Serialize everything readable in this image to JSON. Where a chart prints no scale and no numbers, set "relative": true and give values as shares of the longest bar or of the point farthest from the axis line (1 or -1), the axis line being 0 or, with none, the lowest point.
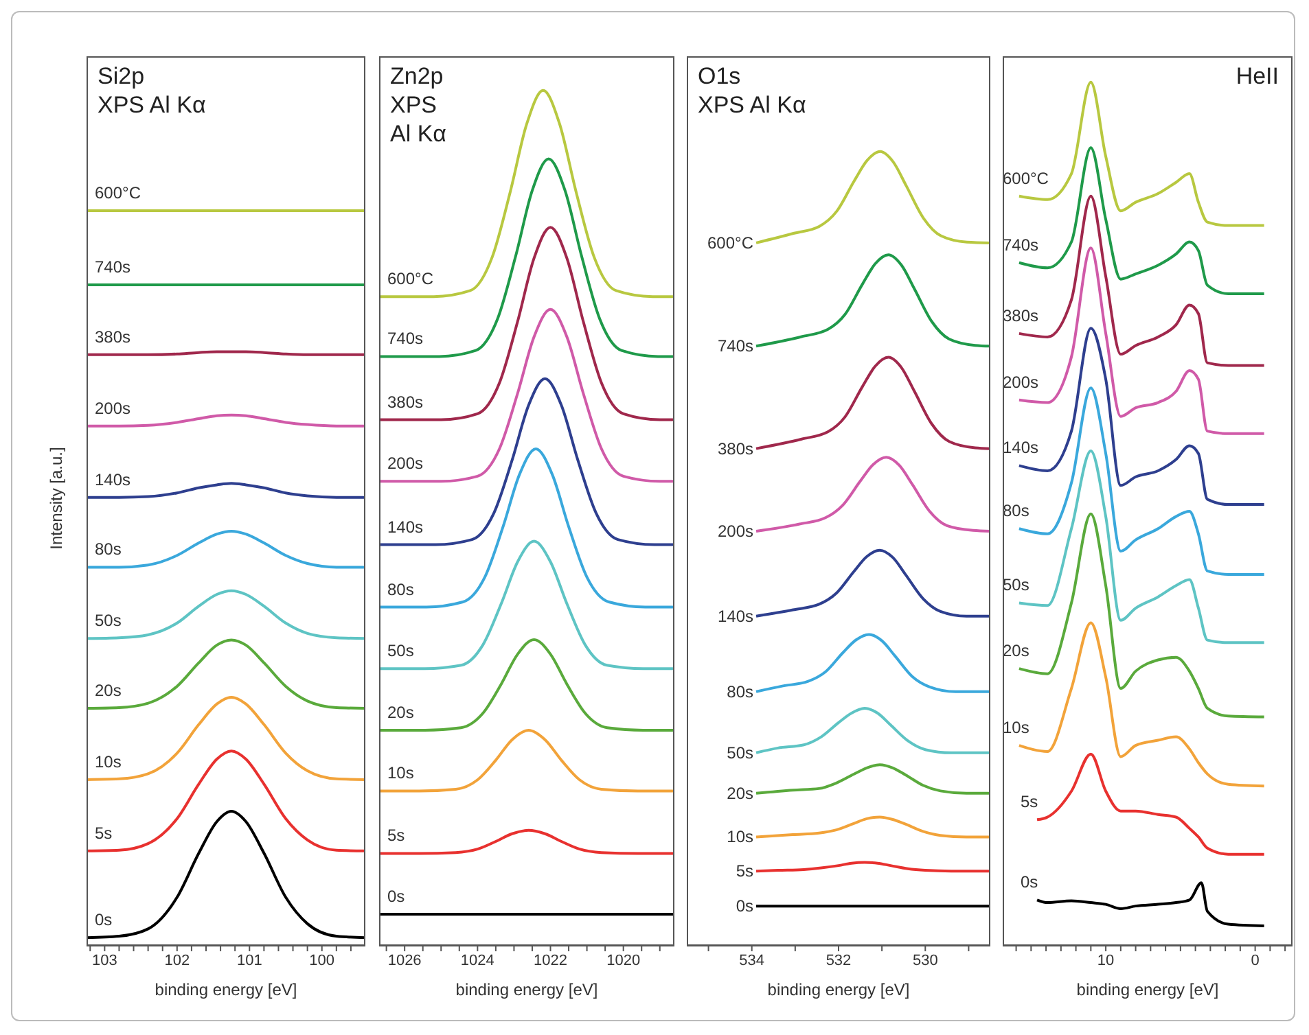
{
  "chart_data": [
    {
      "type": "line",
      "title": "Si2p\nXPS Al Kα",
      "xlabel": "binding energy [eV]",
      "ylabel": "Intensity [a.u.]",
      "relative": true,
      "xlim": [
        103.25,
        99.4
      ],
      "xticks": [
        {
          "value": 103.2,
          "label": null
        },
        103,
        {
          "value": 102.8,
          "label": null
        },
        {
          "value": 102.6,
          "label": null
        },
        {
          "value": 102.4,
          "label": null
        },
        {
          "value": 102.2,
          "label": null
        },
        102,
        {
          "value": 101.8,
          "label": null
        },
        {
          "value": 101.6,
          "label": null
        },
        {
          "value": 101.4,
          "label": null
        },
        {
          "value": 101.2,
          "label": null
        },
        101,
        {
          "value": 100.8,
          "label": null
        },
        {
          "value": 100.6,
          "label": null
        },
        {
          "value": 100.4,
          "label": null
        },
        {
          "value": 100.2,
          "label": null
        },
        100,
        {
          "value": 99.8,
          "label": null
        },
        {
          "value": 99.6,
          "label": null
        }
      ],
      "x": [
        103.25,
        102.8,
        102.4,
        102.0,
        101.7,
        101.45,
        101.25,
        101.05,
        100.8,
        100.5,
        100.2,
        99.8,
        99.4
      ],
      "series": [
        {
          "name": "0s",
          "color": "#000000",
          "values": [
            0.011,
            0.013,
            0.023,
            0.066,
            0.126,
            0.169,
            0.183,
            0.169,
            0.126,
            0.066,
            0.03,
            0.013,
            0.011
          ]
        },
        {
          "name": "5s",
          "color": "#e8312f",
          "values": [
            0.129,
            0.13,
            0.139,
            0.173,
            0.22,
            0.254,
            0.265,
            0.254,
            0.22,
            0.173,
            0.144,
            0.13,
            0.129
          ]
        },
        {
          "name": "10s",
          "color": "#f2a33a",
          "values": [
            0.226,
            0.227,
            0.234,
            0.262,
            0.301,
            0.329,
            0.338,
            0.329,
            0.301,
            0.262,
            0.238,
            0.227,
            0.226
          ]
        },
        {
          "name": "20s",
          "color": "#5aaa3c",
          "values": [
            0.323,
            0.324,
            0.33,
            0.353,
            0.385,
            0.409,
            0.416,
            0.409,
            0.385,
            0.353,
            0.333,
            0.324,
            0.323
          ]
        },
        {
          "name": "50s",
          "color": "#5ec4c4",
          "values": [
            0.418,
            0.419,
            0.423,
            0.439,
            0.462,
            0.478,
            0.483,
            0.478,
            0.462,
            0.439,
            0.425,
            0.419,
            0.418
          ]
        },
        {
          "name": "80s",
          "color": "#3aa8dc",
          "values": [
            0.515,
            0.515,
            0.518,
            0.531,
            0.548,
            0.56,
            0.564,
            0.56,
            0.548,
            0.531,
            0.52,
            0.515,
            0.515
          ]
        },
        {
          "name": "140s",
          "color": "#2e3f8f",
          "values": [
            0.61,
            0.61,
            0.611,
            0.616,
            0.623,
            0.627,
            0.629,
            0.627,
            0.623,
            0.616,
            0.612,
            0.61,
            0.61
          ]
        },
        {
          "name": "200s",
          "color": "#d05aa8",
          "values": [
            0.707,
            0.707,
            0.708,
            0.712,
            0.717,
            0.721,
            0.722,
            0.721,
            0.717,
            0.712,
            0.709,
            0.707,
            0.707
          ]
        },
        {
          "name": "380s",
          "color": "#a0284c",
          "values": [
            0.804,
            0.804,
            0.804,
            0.805,
            0.807,
            0.808,
            0.808,
            0.808,
            0.807,
            0.805,
            0.804,
            0.804,
            0.804
          ]
        },
        {
          "name": "740s",
          "color": "#1f9a4a",
          "values": [
            0.899,
            0.899,
            0.899,
            0.899,
            0.899,
            0.899,
            0.899,
            0.899,
            0.899,
            0.899,
            0.899,
            0.899,
            0.899
          ]
        },
        {
          "name": "600°C",
          "color": "#b8c840",
          "values": [
            1.0,
            1.0,
            1.0,
            1.0,
            1.0,
            1.0,
            1.0,
            1.0,
            1.0,
            1.0,
            1.0,
            1.0,
            1.0
          ]
        }
      ]
    },
    {
      "type": "line",
      "title": "Zn2p\nXPS\nAl Kα",
      "xlabel": "binding energy [eV]",
      "relative": true,
      "xlim": [
        1026.7,
        1018.6
      ],
      "xticks": [
        {
          "value": 1026.5,
          "label": null
        },
        1026,
        {
          "value": 1025.5,
          "label": null
        },
        {
          "value": 1025,
          "label": null
        },
        {
          "value": 1024.5,
          "label": null
        },
        1024,
        {
          "value": 1023.5,
          "label": null
        },
        {
          "value": 1023,
          "label": null
        },
        {
          "value": 1022.5,
          "label": null
        },
        1022,
        {
          "value": 1021.5,
          "label": null
        },
        {
          "value": 1021,
          "label": null
        },
        {
          "value": 1020.5,
          "label": null
        },
        1020,
        {
          "value": 1019.5,
          "label": null
        },
        {
          "value": 1019,
          "label": null
        }
      ],
      "series": [
        {
          "name": "0s",
          "color": "#000000",
          "x": [
            1026.7,
            1018.6
          ],
          "values": [
            0.037,
            0.037
          ]
        },
        {
          "name": "5s",
          "color": "#e8312f",
          "x": [
            1026.7,
            1025.6,
            1024.6,
            1024.0,
            1023.5,
            1023.05,
            1022.6,
            1022.15,
            1021.7,
            1021.2,
            1020.6,
            1019.6,
            1018.6
          ],
          "values": [
            0.108,
            0.108,
            0.109,
            0.113,
            0.122,
            0.131,
            0.135,
            0.131,
            0.122,
            0.113,
            0.109,
            0.108,
            0.108
          ]
        },
        {
          "name": "10s",
          "color": "#f2a33a",
          "x": [
            1026.7,
            1025.6,
            1024.6,
            1024.0,
            1023.5,
            1023.05,
            1022.6,
            1022.15,
            1021.7,
            1021.2,
            1020.6,
            1019.6,
            1018.6
          ],
          "values": [
            0.181,
            0.181,
            0.183,
            0.194,
            0.217,
            0.241,
            0.252,
            0.241,
            0.217,
            0.194,
            0.183,
            0.181,
            0.181
          ]
        },
        {
          "name": "20s",
          "color": "#5aaa3c",
          "x": [
            1026.7,
            1025.45,
            1024.45,
            1023.85,
            1023.35,
            1022.9,
            1022.45,
            1022.0,
            1021.55,
            1021.05,
            1020.45,
            1019.45,
            1018.6
          ],
          "values": [
            0.252,
            0.252,
            0.255,
            0.272,
            0.306,
            0.341,
            0.358,
            0.341,
            0.306,
            0.272,
            0.255,
            0.252,
            0.252
          ]
        },
        {
          "name": "50s",
          "color": "#5ec4c4",
          "x": [
            1026.7,
            1025.45,
            1024.45,
            1023.85,
            1023.35,
            1022.9,
            1022.45,
            1022.0,
            1021.55,
            1021.05,
            1020.45,
            1019.45,
            1018.6
          ],
          "values": [
            0.324,
            0.324,
            0.328,
            0.352,
            0.4,
            0.449,
            0.473,
            0.449,
            0.4,
            0.352,
            0.328,
            0.324,
            0.324
          ]
        },
        {
          "name": "80s",
          "color": "#3aa8dc",
          "x": [
            1026.7,
            1025.4,
            1024.4,
            1023.8,
            1023.3,
            1022.85,
            1022.4,
            1021.95,
            1021.5,
            1021.0,
            1020.4,
            1019.4,
            1018.6
          ],
          "values": [
            0.396,
            0.396,
            0.402,
            0.431,
            0.49,
            0.551,
            0.581,
            0.551,
            0.49,
            0.431,
            0.402,
            0.396,
            0.396
          ]
        },
        {
          "name": "140s",
          "color": "#2e3f8f",
          "x": [
            1026.7,
            1025.15,
            1024.15,
            1023.55,
            1023.05,
            1022.6,
            1022.15,
            1021.7,
            1021.25,
            1020.75,
            1020.15,
            1019.15,
            1018.6
          ],
          "values": [
            0.469,
            0.469,
            0.475,
            0.506,
            0.568,
            0.632,
            0.663,
            0.632,
            0.568,
            0.506,
            0.475,
            0.469,
            0.469
          ]
        },
        {
          "name": "200s",
          "color": "#d05aa8",
          "x": [
            1026.7,
            1025.0,
            1024.0,
            1023.4,
            1022.9,
            1022.45,
            1022.0,
            1021.55,
            1021.1,
            1020.6,
            1020.0,
            1019.0,
            1018.6
          ],
          "values": [
            0.543,
            0.543,
            0.549,
            0.581,
            0.646,
            0.712,
            0.744,
            0.712,
            0.646,
            0.581,
            0.549,
            0.543,
            0.543
          ]
        },
        {
          "name": "380s",
          "color": "#a0284c",
          "x": [
            1026.7,
            1025.0,
            1024.0,
            1023.4,
            1022.9,
            1022.45,
            1022.0,
            1021.55,
            1021.1,
            1020.6,
            1020.0,
            1019.0,
            1018.6
          ],
          "values": [
            0.615,
            0.615,
            0.622,
            0.658,
            0.73,
            0.804,
            0.84,
            0.804,
            0.73,
            0.658,
            0.622,
            0.615,
            0.615
          ]
        },
        {
          "name": "740s",
          "color": "#1f9a4a",
          "x": [
            1026.7,
            1025.05,
            1024.05,
            1023.45,
            1022.95,
            1022.5,
            1022.05,
            1021.6,
            1021.15,
            1020.65,
            1020.05,
            1019.05,
            1018.6
          ],
          "values": [
            0.689,
            0.689,
            0.696,
            0.733,
            0.807,
            0.883,
            0.92,
            0.883,
            0.807,
            0.733,
            0.696,
            0.689,
            0.689
          ]
        },
        {
          "name": "600°C",
          "color": "#b8c840",
          "x": [
            1026.7,
            1025.2,
            1024.2,
            1023.6,
            1023.1,
            1022.65,
            1022.2,
            1021.75,
            1021.3,
            1020.8,
            1020.2,
            1019.2,
            1018.6
          ],
          "values": [
            0.759,
            0.759,
            0.766,
            0.805,
            0.882,
            0.961,
            1.0,
            0.961,
            0.882,
            0.805,
            0.766,
            0.759,
            0.759
          ]
        }
      ]
    },
    {
      "type": "line",
      "title": "O1s\nXPS Al Kα",
      "xlabel": "binding energy [eV]",
      "relative": true,
      "xlim": [
        535.5,
        528.5
      ],
      "xticks": [
        {
          "value": 535,
          "label": null
        },
        534,
        {
          "value": 533,
          "label": null
        },
        532,
        {
          "value": 531,
          "label": null
        },
        530,
        {
          "value": 529,
          "label": null
        }
      ],
      "series": [
        {
          "name": "0s",
          "color": "#000000",
          "x": [
            533.9,
            528.5
          ],
          "values": [
            0.05,
            0.05
          ]
        },
        {
          "name": "5s",
          "color": "#e8312f",
          "x": [
            533.9,
            533.4,
            532.8,
            532.4,
            532.0,
            531.7,
            531.4,
            531.1,
            530.8,
            530.4,
            530.0,
            529.4,
            528.5
          ],
          "values": [
            0.094,
            0.095,
            0.096,
            0.098,
            0.101,
            0.104,
            0.105,
            0.104,
            0.101,
            0.097,
            0.095,
            0.094,
            0.094
          ]
        },
        {
          "name": "10s",
          "color": "#f2a33a",
          "x": [
            533.9,
            533.05,
            532.45,
            532.05,
            531.65,
            531.35,
            531.05,
            530.75,
            530.45,
            530.05,
            529.65,
            529.05,
            528.5
          ],
          "values": [
            0.137,
            0.14,
            0.142,
            0.146,
            0.154,
            0.16,
            0.162,
            0.159,
            0.153,
            0.144,
            0.139,
            0.137,
            0.137
          ]
        },
        {
          "name": "20s",
          "color": "#5aaa3c",
          "x": [
            533.9,
            533.05,
            532.45,
            532.05,
            531.65,
            531.35,
            531.05,
            530.75,
            530.45,
            530.05,
            529.65,
            529.05,
            528.5
          ],
          "values": [
            0.192,
            0.196,
            0.198,
            0.205,
            0.216,
            0.224,
            0.228,
            0.224,
            0.215,
            0.202,
            0.195,
            0.192,
            0.192
          ]
        },
        {
          "name": "50s",
          "color": "#5ec4c4",
          "x": [
            533.9,
            533.4,
            532.8,
            532.4,
            532.0,
            531.7,
            531.4,
            531.1,
            530.8,
            530.4,
            530.0,
            529.4,
            528.5
          ],
          "values": [
            0.243,
            0.249,
            0.253,
            0.263,
            0.281,
            0.293,
            0.299,
            0.293,
            0.278,
            0.258,
            0.247,
            0.243,
            0.243
          ]
        },
        {
          "name": "80s",
          "color": "#3aa8dc",
          "x": [
            533.9,
            533.3,
            532.7,
            532.3,
            531.9,
            531.6,
            531.3,
            531.0,
            530.7,
            530.3,
            529.9,
            529.3,
            528.5
          ],
          "values": [
            0.32,
            0.327,
            0.333,
            0.345,
            0.369,
            0.385,
            0.392,
            0.384,
            0.365,
            0.339,
            0.326,
            0.32,
            0.32
          ]
        },
        {
          "name": "140s",
          "color": "#2e3f8f",
          "x": [
            533.9,
            533.05,
            532.45,
            532.05,
            531.65,
            531.35,
            531.05,
            530.75,
            530.45,
            530.05,
            529.65,
            529.05,
            528.5
          ],
          "values": [
            0.415,
            0.423,
            0.43,
            0.444,
            0.471,
            0.49,
            0.498,
            0.489,
            0.467,
            0.437,
            0.421,
            0.415,
            0.415
          ]
        },
        {
          "name": "200s",
          "color": "#d05aa8",
          "x": [
            533.9,
            532.9,
            532.3,
            531.9,
            531.5,
            531.2,
            530.9,
            530.6,
            530.3,
            529.9,
            529.5,
            528.9,
            528.5
          ],
          "values": [
            0.522,
            0.531,
            0.539,
            0.555,
            0.585,
            0.606,
            0.615,
            0.605,
            0.581,
            0.547,
            0.529,
            0.523,
            0.522
          ]
        },
        {
          "name": "380s",
          "color": "#a0284c",
          "x": [
            533.9,
            532.85,
            532.25,
            531.85,
            531.45,
            531.15,
            530.85,
            530.55,
            530.25,
            529.85,
            529.45,
            528.85,
            528.5
          ],
          "values": [
            0.626,
            0.638,
            0.647,
            0.666,
            0.704,
            0.73,
            0.741,
            0.728,
            0.698,
            0.657,
            0.635,
            0.627,
            0.626
          ]
        },
        {
          "name": "740s",
          "color": "#1f9a4a",
          "x": [
            533.9,
            532.85,
            532.25,
            531.85,
            531.45,
            531.15,
            530.85,
            530.55,
            530.25,
            529.85,
            529.45,
            528.85,
            528.5
          ],
          "values": [
            0.755,
            0.767,
            0.776,
            0.795,
            0.833,
            0.859,
            0.87,
            0.857,
            0.827,
            0.786,
            0.764,
            0.756,
            0.755
          ]
        },
        {
          "name": "600°C",
          "color": "#b8c840",
          "x": [
            533.9,
            533.04,
            532.44,
            532.04,
            531.64,
            531.34,
            531.04,
            530.74,
            530.44,
            530.04,
            529.64,
            529.04,
            528.5
          ],
          "values": [
            0.885,
            0.897,
            0.906,
            0.925,
            0.963,
            0.989,
            1.0,
            0.987,
            0.957,
            0.916,
            0.894,
            0.886,
            0.885
          ]
        }
      ]
    },
    {
      "type": "line",
      "title": "HeII",
      "xlabel": "binding energy [eV]",
      "relative": true,
      "xlim": [
        16.9,
        -2.5
      ],
      "xticks": [
        {
          "value": 16,
          "label": null
        },
        {
          "value": 15,
          "label": null
        },
        {
          "value": 14,
          "label": null
        },
        {
          "value": 13,
          "label": null
        },
        {
          "value": 12,
          "label": null
        },
        {
          "value": 11,
          "label": null
        },
        10,
        {
          "value": 9,
          "label": null
        },
        {
          "value": 8,
          "label": null
        },
        {
          "value": 7,
          "label": null
        },
        {
          "value": 6,
          "label": null
        },
        {
          "value": 5,
          "label": null
        },
        {
          "value": 4,
          "label": null
        },
        {
          "value": 3,
          "label": null
        },
        {
          "value": 2,
          "label": null
        },
        {
          "value": 1,
          "label": null
        },
        0,
        {
          "value": -1,
          "label": null
        },
        {
          "value": -2,
          "label": null
        }
      ],
      "x": [
        15.8,
        13.9,
        12.3,
        11.0,
        10.0,
        9.0,
        8.0,
        6.5,
        5.3,
        4.4,
        3.8,
        3.2,
        1.8,
        -0.6
      ],
      "series": [
        {
          "name": "0s",
          "color": "#000000",
          "x": [
            14.6,
            13.9,
            12.3,
            11.0,
            10.0,
            9.0,
            8.0,
            6.5,
            5.3,
            4.4,
            3.6,
            3.2,
            1.8,
            -0.6
          ],
          "values": [
            0.053,
            0.05,
            0.052,
            0.05,
            0.048,
            0.043,
            0.046,
            0.048,
            0.05,
            0.053,
            0.073,
            0.04,
            0.025,
            0.023
          ]
        },
        {
          "name": "5s",
          "color": "#e8312f",
          "x": [
            14.6,
            13.9,
            12.3,
            11.0,
            10.0,
            9.0,
            8.0,
            6.5,
            5.3,
            4.4,
            3.8,
            3.2,
            1.8,
            -0.6
          ],
          "values": [
            0.146,
            0.149,
            0.179,
            0.222,
            0.179,
            0.156,
            0.156,
            0.152,
            0.149,
            0.136,
            0.126,
            0.113,
            0.106,
            0.106
          ]
        },
        {
          "name": "10s",
          "color": "#f2a33a",
          "values": [
            0.232,
            0.225,
            0.298,
            0.374,
            0.311,
            0.219,
            0.232,
            0.238,
            0.242,
            0.228,
            0.212,
            0.199,
            0.187,
            0.185
          ]
        },
        {
          "name": "20s",
          "color": "#5aaa3c",
          "values": [
            0.321,
            0.315,
            0.397,
            0.5,
            0.417,
            0.298,
            0.318,
            0.331,
            0.334,
            0.318,
            0.298,
            0.275,
            0.266,
            0.265
          ]
        },
        {
          "name": "50s",
          "color": "#5ec4c4",
          "values": [
            0.397,
            0.394,
            0.483,
            0.573,
            0.497,
            0.377,
            0.391,
            0.404,
            0.417,
            0.424,
            0.391,
            0.354,
            0.351,
            0.351
          ]
        },
        {
          "name": "80s",
          "color": "#3aa8dc",
          "values": [
            0.483,
            0.477,
            0.536,
            0.646,
            0.57,
            0.457,
            0.47,
            0.483,
            0.497,
            0.503,
            0.477,
            0.434,
            0.43,
            0.43
          ]
        },
        {
          "name": "140s",
          "color": "#2e3f8f",
          "values": [
            0.556,
            0.55,
            0.596,
            0.715,
            0.656,
            0.533,
            0.543,
            0.55,
            0.563,
            0.579,
            0.57,
            0.517,
            0.511,
            0.511
          ]
        },
        {
          "name": "200s",
          "color": "#d05aa8",
          "values": [
            0.632,
            0.629,
            0.682,
            0.808,
            0.709,
            0.613,
            0.623,
            0.629,
            0.642,
            0.666,
            0.656,
            0.596,
            0.593,
            0.593
          ]
        },
        {
          "name": "380s",
          "color": "#a0284c",
          "values": [
            0.709,
            0.705,
            0.748,
            0.868,
            0.775,
            0.685,
            0.695,
            0.705,
            0.719,
            0.742,
            0.732,
            0.675,
            0.672,
            0.672
          ]
        },
        {
          "name": "740s",
          "color": "#1f9a4a",
          "values": [
            0.791,
            0.785,
            0.815,
            0.924,
            0.841,
            0.772,
            0.778,
            0.788,
            0.801,
            0.815,
            0.805,
            0.765,
            0.755,
            0.755
          ]
        },
        {
          "name": "600°C",
          "color": "#b8c840",
          "values": [
            0.868,
            0.864,
            0.894,
            1.0,
            0.914,
            0.851,
            0.861,
            0.871,
            0.884,
            0.894,
            0.861,
            0.838,
            0.834,
            0.834
          ]
        }
      ]
    }
  ]
}
